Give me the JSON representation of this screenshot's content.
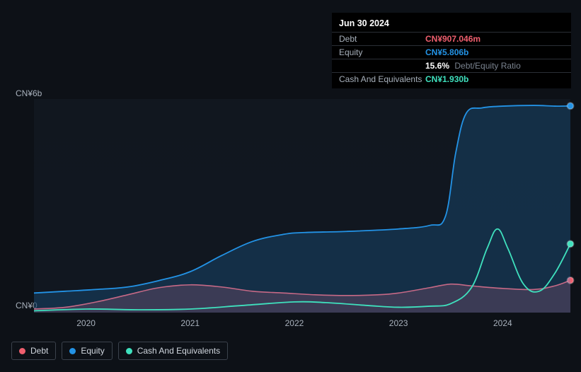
{
  "chart": {
    "type": "line-area",
    "background_color": "#0d1117",
    "plot_background": "#142034",
    "grid_color": "#2a2f36",
    "text_color": "#a7b0bb",
    "font_size": 12,
    "aspect_w": 758,
    "aspect_h": 302,
    "yaxis": {
      "min": 0,
      "max": 6,
      "unit": "b",
      "prefix": "CN¥",
      "ticks": [
        {
          "value": 0,
          "label": "CN¥0"
        },
        {
          "value": 6,
          "label": "CN¥6b"
        }
      ]
    },
    "xaxis": {
      "min": 2019.5,
      "max": 2024.65,
      "ticks": [
        {
          "value": 2020,
          "label": "2020"
        },
        {
          "value": 2021,
          "label": "2021"
        },
        {
          "value": 2022,
          "label": "2022"
        },
        {
          "value": 2023,
          "label": "2023"
        },
        {
          "value": 2024,
          "label": "2024"
        }
      ]
    },
    "series": [
      {
        "id": "debt",
        "name": "Debt",
        "color": "#ef5f6e",
        "fill_opacity": 0.22,
        "line_width": 1.6,
        "points": [
          [
            2019.5,
            0.1
          ],
          [
            2019.8,
            0.15
          ],
          [
            2020.1,
            0.3
          ],
          [
            2020.4,
            0.5
          ],
          [
            2020.7,
            0.7
          ],
          [
            2021.0,
            0.78
          ],
          [
            2021.3,
            0.72
          ],
          [
            2021.6,
            0.6
          ],
          [
            2021.9,
            0.55
          ],
          [
            2022.2,
            0.5
          ],
          [
            2022.5,
            0.48
          ],
          [
            2022.8,
            0.5
          ],
          [
            2023.0,
            0.55
          ],
          [
            2023.3,
            0.7
          ],
          [
            2023.5,
            0.8
          ],
          [
            2023.7,
            0.75
          ],
          [
            2024.0,
            0.68
          ],
          [
            2024.3,
            0.65
          ],
          [
            2024.5,
            0.75
          ],
          [
            2024.65,
            0.907
          ]
        ]
      },
      {
        "id": "equity",
        "name": "Equity",
        "color": "#2393e6",
        "fill_opacity": 0.2,
        "line_width": 1.8,
        "points": [
          [
            2019.5,
            0.55
          ],
          [
            2019.8,
            0.6
          ],
          [
            2020.1,
            0.65
          ],
          [
            2020.4,
            0.72
          ],
          [
            2020.7,
            0.9
          ],
          [
            2021.0,
            1.15
          ],
          [
            2021.3,
            1.6
          ],
          [
            2021.6,
            2.0
          ],
          [
            2021.9,
            2.2
          ],
          [
            2022.1,
            2.25
          ],
          [
            2022.5,
            2.28
          ],
          [
            2023.0,
            2.35
          ],
          [
            2023.3,
            2.45
          ],
          [
            2023.45,
            2.7
          ],
          [
            2023.55,
            4.5
          ],
          [
            2023.65,
            5.6
          ],
          [
            2023.8,
            5.75
          ],
          [
            2024.0,
            5.8
          ],
          [
            2024.3,
            5.82
          ],
          [
            2024.5,
            5.8
          ],
          [
            2024.65,
            5.806
          ]
        ]
      },
      {
        "id": "cash",
        "name": "Cash And Equivalents",
        "color": "#3fe1be",
        "fill_opacity": 0,
        "line_width": 1.8,
        "points": [
          [
            2019.5,
            0.05
          ],
          [
            2020.0,
            0.1
          ],
          [
            2020.5,
            0.08
          ],
          [
            2021.0,
            0.1
          ],
          [
            2021.5,
            0.2
          ],
          [
            2022.0,
            0.3
          ],
          [
            2022.3,
            0.28
          ],
          [
            2022.7,
            0.2
          ],
          [
            2023.0,
            0.15
          ],
          [
            2023.3,
            0.18
          ],
          [
            2023.5,
            0.25
          ],
          [
            2023.7,
            0.7
          ],
          [
            2023.85,
            1.8
          ],
          [
            2023.95,
            2.35
          ],
          [
            2024.05,
            1.8
          ],
          [
            2024.2,
            0.8
          ],
          [
            2024.35,
            0.6
          ],
          [
            2024.5,
            1.1
          ],
          [
            2024.65,
            1.93
          ]
        ]
      }
    ],
    "end_markers": true,
    "marker_radius": 4.5
  },
  "tooltip": {
    "date": "Jun 30 2024",
    "rows": [
      {
        "label": "Debt",
        "value": "CN¥907.046m",
        "color": "#ef5f6e"
      },
      {
        "label": "Equity",
        "value": "CN¥5.806b",
        "color": "#2393e6"
      }
    ],
    "ratio": {
      "pct": "15.6%",
      "label": "Debt/Equity Ratio"
    },
    "cash_row": {
      "label": "Cash And Equivalents",
      "value": "CN¥1.930b",
      "color": "#3fe1be"
    }
  },
  "legend": {
    "items": [
      {
        "id": "debt",
        "label": "Debt",
        "color": "#ef5f6e"
      },
      {
        "id": "equity",
        "label": "Equity",
        "color": "#2393e6"
      },
      {
        "id": "cash",
        "label": "Cash And Equivalents",
        "color": "#3fe1be"
      }
    ],
    "border_color": "#3b424c",
    "font_size": 12
  }
}
